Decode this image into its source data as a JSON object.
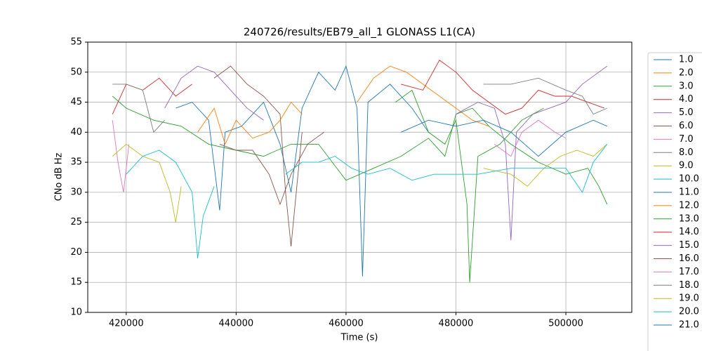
{
  "chart_data": {
    "type": "line",
    "title": "240726/results/EB79_all_1 GLONASS L1(CA)",
    "x_label": "Time (s)",
    "y_label": "CNo dB Hz",
    "xlim": [
      413000,
      512000
    ],
    "xticks": [
      420000,
      440000,
      460000,
      480000,
      500000
    ],
    "ylim": [
      10,
      55
    ],
    "yticks": [
      10,
      15,
      20,
      25,
      30,
      35,
      40,
      45,
      50,
      55
    ],
    "grid": true,
    "legend": "outside right",
    "series": [
      {
        "name": "1.0",
        "color": "#1f77b4",
        "x": [
          441000,
          445000,
          448000,
          450000,
          452000,
          455000,
          458000,
          460000,
          462000,
          463000,
          464000,
          468000,
          472000,
          475000
        ],
        "values": [
          41,
          45,
          38,
          30,
          44,
          50,
          47,
          51,
          44,
          16,
          45,
          48,
          44,
          40
        ]
      },
      {
        "name": "2.0",
        "color": "#ff7f0e",
        "x": [
          462000,
          465000,
          468000,
          471000,
          474000,
          477000,
          480000,
          483000,
          486000
        ],
        "values": [
          45,
          49,
          51,
          50,
          48,
          46,
          44,
          42,
          41
        ]
      },
      {
        "name": "3.0",
        "color": "#2ca02c",
        "x": [
          469000,
          472000,
          475000,
          478000,
          480000,
          482000,
          482500,
          484000,
          488000,
          492000,
          496000
        ],
        "values": [
          45,
          47,
          40,
          38,
          42,
          28,
          15,
          36,
          38,
          42,
          44
        ]
      },
      {
        "name": "4.0",
        "color": "#d62728",
        "x": [
          417500,
          420000,
          423000,
          426000,
          429000,
          432000
        ],
        "values": [
          43,
          48,
          47,
          49,
          46,
          48
        ]
      },
      {
        "name": "5.0",
        "color": "#9467bd",
        "x": [
          427000,
          430000,
          433000,
          436000,
          439000,
          442000,
          445000
        ],
        "values": [
          44,
          49,
          51,
          50,
          47,
          44,
          42
        ]
      },
      {
        "name": "6.0",
        "color": "#8c564b",
        "x": [
          436000,
          439000,
          442000,
          445000,
          448000,
          449000,
          450000,
          452000
        ],
        "values": [
          49,
          51,
          48,
          46,
          43,
          30,
          21,
          40
        ]
      },
      {
        "name": "7.0",
        "color": "#e377c2",
        "x": [
          417500,
          418500,
          419500,
          420500
        ],
        "values": [
          42,
          35,
          30,
          38
        ]
      },
      {
        "name": "8.0",
        "color": "#7f7f7f",
        "x": [
          417500,
          420000,
          423000,
          425000,
          427000
        ],
        "values": [
          48,
          48,
          47,
          40,
          42
        ]
      },
      {
        "name": "9.0",
        "color": "#bcbd22",
        "x": [
          417500,
          420000,
          423000,
          426000,
          428000,
          429000,
          430000
        ],
        "values": [
          36,
          38,
          36,
          35,
          30,
          25,
          31
        ]
      },
      {
        "name": "10.0",
        "color": "#17becf",
        "x": [
          420000,
          423000,
          426000,
          429000,
          432000,
          433000,
          434000,
          436000
        ],
        "values": [
          33,
          36,
          37,
          35,
          30,
          19,
          26,
          31
        ]
      },
      {
        "name": "11.0",
        "color": "#1f77b4",
        "x": [
          429000,
          432000,
          435000,
          437000,
          438000,
          441000
        ],
        "values": [
          44,
          45,
          42,
          27,
          40,
          41
        ]
      },
      {
        "name": "12.0",
        "color": "#ff7f0e",
        "x": [
          433000,
          436000,
          438000,
          440000,
          443000,
          446000,
          448000,
          450000,
          452000
        ],
        "values": [
          40,
          44,
          38,
          42,
          39,
          40,
          42,
          45,
          43
        ]
      },
      {
        "name": "13.0",
        "color": "#2ca02c",
        "x": [
          417500,
          420000,
          425000,
          430000,
          435000,
          440000,
          445000,
          450000,
          455000,
          460000,
          465000,
          470000,
          475000,
          478000,
          480000,
          483000,
          486000,
          490000,
          495000,
          500000,
          504000,
          506000,
          507500
        ],
        "values": [
          46,
          44,
          42,
          41,
          38,
          37,
          36,
          38,
          38,
          32,
          34,
          36,
          39,
          36,
          43,
          44,
          41,
          38,
          35,
          33,
          34,
          31,
          28
        ]
      },
      {
        "name": "14.0",
        "color": "#d62728",
        "x": [
          470000,
          474000,
          477000,
          480000,
          483000,
          486000,
          489000,
          492000,
          495000,
          498000,
          501000,
          504000,
          507000
        ],
        "values": [
          48,
          47,
          52,
          50,
          47,
          45,
          43,
          44,
          47,
          46,
          46,
          45,
          44
        ]
      },
      {
        "name": "15.0",
        "color": "#9467bd",
        "x": [
          480000,
          484000,
          487000,
          489000,
          490000,
          491000,
          494000,
          497000,
          500000,
          503000,
          506000,
          507500
        ],
        "values": [
          43,
          45,
          44,
          38,
          22,
          40,
          43,
          44,
          45,
          48,
          50,
          51
        ]
      },
      {
        "name": "16.0",
        "color": "#8c564b",
        "x": [
          437000,
          440000,
          443000,
          446000,
          448000,
          450000,
          453000,
          456000
        ],
        "values": [
          38,
          37,
          37,
          33,
          28,
          33,
          38,
          40
        ]
      },
      {
        "name": "17.0",
        "color": "#e377c2",
        "x": [
          487000,
          490000,
          492000,
          495000,
          498000,
          500000
        ],
        "values": [
          38,
          36,
          40,
          42,
          40,
          39
        ]
      },
      {
        "name": "18.0",
        "color": "#7f7f7f",
        "x": [
          485000,
          490000,
          495000,
          500000,
          503000,
          505000,
          507500
        ],
        "values": [
          48,
          48,
          49,
          47,
          46,
          43,
          44
        ]
      },
      {
        "name": "19.0",
        "color": "#bcbd22",
        "x": [
          485000,
          490000,
          493000,
          496000,
          499000,
          502000,
          505000,
          507500
        ],
        "values": [
          34,
          33,
          31,
          34,
          36,
          37,
          36,
          38
        ]
      },
      {
        "name": "20.0",
        "color": "#17becf",
        "x": [
          449000,
          452000,
          455000,
          458000,
          461000,
          464000,
          468000,
          472000,
          476000,
          480000,
          484000,
          490000,
          495000,
          500000,
          503000,
          505000,
          507500
        ],
        "values": [
          33,
          35,
          35,
          36,
          34,
          33,
          34,
          32,
          33,
          33,
          33,
          34,
          34,
          34,
          30,
          35,
          38
        ]
      },
      {
        "name": "21.0",
        "color": "#1f77b4",
        "x": [
          470000,
          475000,
          480000,
          485000,
          490000,
          495000,
          500000,
          505000,
          507500
        ],
        "values": [
          40,
          42,
          41,
          42,
          40,
          36,
          40,
          42,
          41
        ]
      }
    ]
  }
}
